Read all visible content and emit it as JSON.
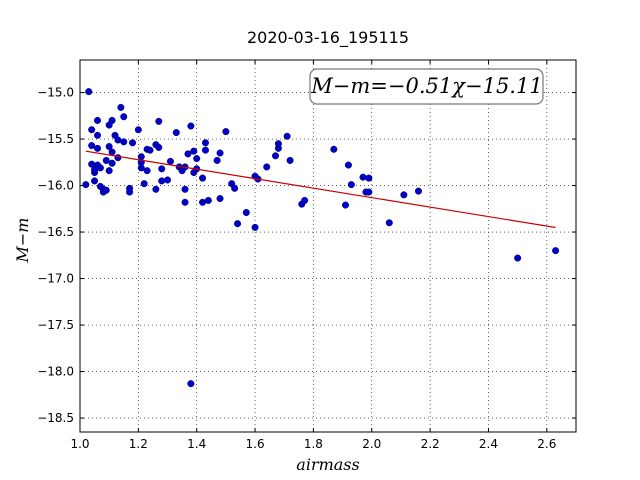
{
  "chart_data": {
    "type": "scatter",
    "title": "2020-03-16_195115",
    "xlabel": "airmass",
    "ylabel": "M−m",
    "xlim": [
      1.0,
      2.7
    ],
    "ylim": [
      -18.65,
      -14.65
    ],
    "x_ticks": [
      1.0,
      1.2,
      1.4,
      1.6,
      1.8,
      2.0,
      2.2,
      2.4,
      2.6
    ],
    "x_tick_labels": [
      "1.0",
      "1.2",
      "1.4",
      "1.6",
      "1.8",
      "2.0",
      "2.2",
      "2.4",
      "2.6"
    ],
    "y_ticks": [
      -15.0,
      -15.5,
      -16.0,
      -16.5,
      -17.0,
      -17.5,
      -18.0,
      -18.5
    ],
    "y_tick_labels": [
      "−15.0",
      "−15.5",
      "−16.0",
      "−16.5",
      "−17.0",
      "−17.5",
      "−18.0",
      "−18.5"
    ],
    "grid": true,
    "annotation": "M−m=−0.51χ−15.11",
    "fit": {
      "slope": -0.51,
      "intercept": -15.11,
      "x_range": [
        1.02,
        2.63
      ],
      "color": "#cc0000"
    },
    "point_color": "#0000cc",
    "points": [
      [
        1.02,
        -15.99
      ],
      [
        1.03,
        -14.99
      ],
      [
        1.04,
        -15.4
      ],
      [
        1.04,
        -15.57
      ],
      [
        1.04,
        -15.77
      ],
      [
        1.05,
        -15.95
      ],
      [
        1.05,
        -15.86
      ],
      [
        1.05,
        -15.83
      ],
      [
        1.06,
        -15.3
      ],
      [
        1.06,
        -15.46
      ],
      [
        1.06,
        -15.6
      ],
      [
        1.06,
        -15.78
      ],
      [
        1.07,
        -15.81
      ],
      [
        1.07,
        -16.01
      ],
      [
        1.08,
        -16.04
      ],
      [
        1.08,
        -16.07
      ],
      [
        1.09,
        -16.05
      ],
      [
        1.09,
        -15.73
      ],
      [
        1.1,
        -15.35
      ],
      [
        1.1,
        -15.58
      ],
      [
        1.1,
        -15.84
      ],
      [
        1.11,
        -15.3
      ],
      [
        1.11,
        -15.64
      ],
      [
        1.11,
        -15.76
      ],
      [
        1.12,
        -15.46
      ],
      [
        1.13,
        -15.7
      ],
      [
        1.13,
        -15.51
      ],
      [
        1.14,
        -15.16
      ],
      [
        1.15,
        -15.26
      ],
      [
        1.15,
        -15.53
      ],
      [
        1.17,
        -16.03
      ],
      [
        1.17,
        -16.07
      ],
      [
        1.18,
        -15.54
      ],
      [
        1.2,
        -15.4
      ],
      [
        1.21,
        -15.69
      ],
      [
        1.21,
        -15.75
      ],
      [
        1.21,
        -15.81
      ],
      [
        1.22,
        -15.98
      ],
      [
        1.23,
        -15.84
      ],
      [
        1.23,
        -15.61
      ],
      [
        1.24,
        -15.62
      ],
      [
        1.26,
        -16.04
      ],
      [
        1.26,
        -15.56
      ],
      [
        1.27,
        -15.59
      ],
      [
        1.27,
        -15.31
      ],
      [
        1.28,
        -15.95
      ],
      [
        1.28,
        -15.82
      ],
      [
        1.3,
        -15.94
      ],
      [
        1.31,
        -15.74
      ],
      [
        1.33,
        -15.43
      ],
      [
        1.34,
        -15.8
      ],
      [
        1.35,
        -15.84
      ],
      [
        1.36,
        -15.8
      ],
      [
        1.36,
        -16.04
      ],
      [
        1.36,
        -16.18
      ],
      [
        1.37,
        -15.66
      ],
      [
        1.38,
        -15.36
      ],
      [
        1.38,
        -18.13
      ],
      [
        1.39,
        -15.63
      ],
      [
        1.39,
        -15.86
      ],
      [
        1.4,
        -15.82
      ],
      [
        1.4,
        -15.71
      ],
      [
        1.42,
        -15.92
      ],
      [
        1.42,
        -16.18
      ],
      [
        1.43,
        -15.62
      ],
      [
        1.43,
        -15.54
      ],
      [
        1.44,
        -16.16
      ],
      [
        1.47,
        -15.73
      ],
      [
        1.48,
        -15.65
      ],
      [
        1.48,
        -16.14
      ],
      [
        1.5,
        -15.42
      ],
      [
        1.52,
        -15.98
      ],
      [
        1.53,
        -16.03
      ],
      [
        1.54,
        -16.41
      ],
      [
        1.57,
        -16.29
      ],
      [
        1.6,
        -16.45
      ],
      [
        1.6,
        -15.9
      ],
      [
        1.61,
        -15.93
      ],
      [
        1.64,
        -15.8
      ],
      [
        1.67,
        -15.68
      ],
      [
        1.68,
        -15.6
      ],
      [
        1.68,
        -15.55
      ],
      [
        1.71,
        -15.47
      ],
      [
        1.72,
        -15.73
      ],
      [
        1.76,
        -16.2
      ],
      [
        1.77,
        -16.16
      ],
      [
        1.87,
        -15.61
      ],
      [
        1.91,
        -16.21
      ],
      [
        1.92,
        -15.78
      ],
      [
        1.93,
        -15.99
      ],
      [
        1.97,
        -15.91
      ],
      [
        1.98,
        -16.07
      ],
      [
        1.99,
        -16.07
      ],
      [
        1.99,
        -15.92
      ],
      [
        2.06,
        -16.4
      ],
      [
        2.11,
        -16.1
      ],
      [
        2.16,
        -16.06
      ],
      [
        2.5,
        -16.78
      ],
      [
        2.63,
        -16.7
      ]
    ]
  }
}
